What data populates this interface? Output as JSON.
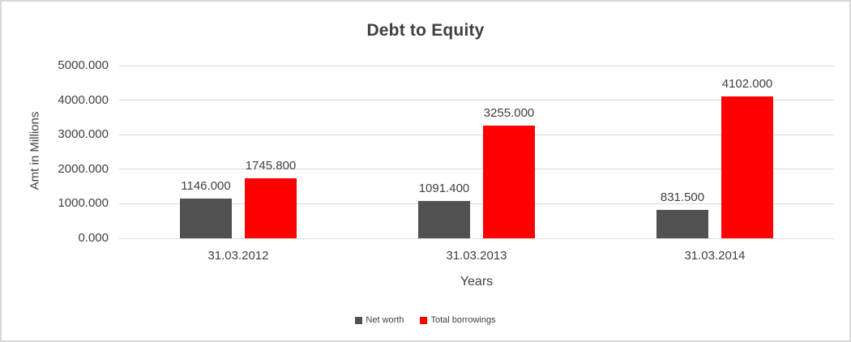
{
  "chart_data": {
    "type": "bar",
    "title": "Debt to Equity",
    "xlabel": "Years",
    "ylabel": "Amt in Millions",
    "categories": [
      "31.03.2012",
      "31.03.2013",
      "31.03.2014"
    ],
    "series": [
      {
        "name": "Net worth",
        "color": "#515151",
        "values": [
          1146.0,
          1091.4,
          831.5
        ],
        "labels": [
          "1146.000",
          "1091.400",
          "831.500"
        ]
      },
      {
        "name": "Total borrowings",
        "color": "#ff0000",
        "values": [
          1745.8,
          3255.0,
          4102.0
        ],
        "labels": [
          "1745.800",
          "3255.000",
          "4102.000"
        ]
      }
    ],
    "ylim": [
      0,
      5000
    ],
    "ytick_step": 1000,
    "ytick_labels": [
      "0.000",
      "1000.000",
      "2000.000",
      "3000.000",
      "4000.000",
      "5000.000"
    ],
    "grid": true,
    "grid_color": "#d9d9d9",
    "text_color": "#404040",
    "legend_position": "bottom"
  }
}
